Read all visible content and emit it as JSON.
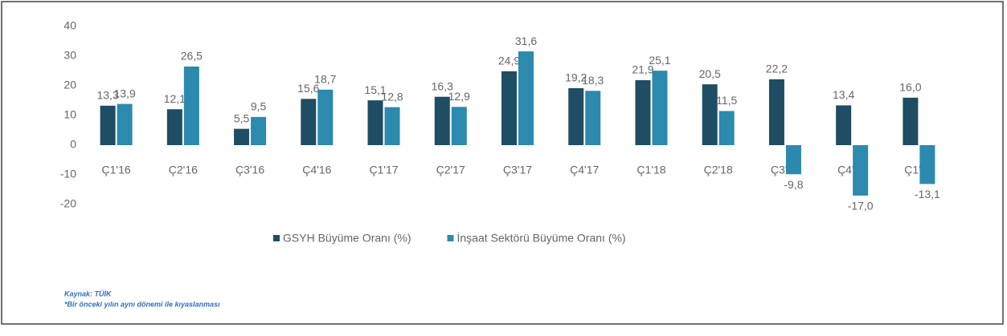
{
  "chart_data": {
    "type": "bar",
    "categories": [
      "Ç1'16",
      "Ç2'16",
      "Ç3'16",
      "Ç4'16",
      "Ç1'17",
      "Ç2'17",
      "Ç3'17",
      "Ç4'17",
      "Ç1'18",
      "Ç2'18",
      "Ç3'18",
      "Ç4'18",
      "Ç1'19"
    ],
    "series": [
      {
        "name": "GSYH Büyüme Oranı (%)",
        "color": "#1f4d63",
        "values": [
          13.3,
          12.1,
          5.5,
          15.6,
          15.1,
          16.3,
          24.9,
          19.2,
          21.9,
          20.5,
          22.2,
          13.4,
          16.0
        ],
        "value_labels": [
          "13,3",
          "12,1",
          "5,5",
          "15,6",
          "15,1",
          "16,3",
          "24,9",
          "19,2",
          "21,9",
          "20,5",
          "22,2",
          "13,4",
          "16,0"
        ]
      },
      {
        "name": "İnşaat Sektörü Büyüme Oranı (%)",
        "color": "#2b8aad",
        "values": [
          13.9,
          26.5,
          9.5,
          18.7,
          12.8,
          12.9,
          31.6,
          18.3,
          25.1,
          11.5,
          -9.8,
          -17.0,
          -13.1
        ],
        "value_labels": [
          "13,9",
          "26,5",
          "9,5",
          "18,7",
          "12,8",
          "12,9",
          "31,6",
          "18,3",
          "25,1",
          "11,5",
          "-9,8",
          "-17,0",
          "-13,1"
        ]
      }
    ],
    "ylim": [
      -20,
      40
    ],
    "yticks": [
      -20,
      -10,
      0,
      10,
      20,
      30,
      40
    ],
    "grid": false,
    "legend": "bottom"
  },
  "footnotes": [
    "Kaynak: TÜİK",
    "*Bir önceki yılın aynı dönemi ile kıyaslanması"
  ]
}
